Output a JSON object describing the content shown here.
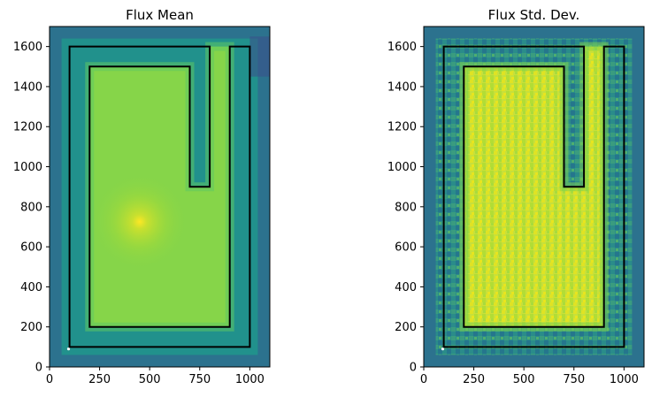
{
  "chart_data": [
    {
      "type": "heatmap",
      "title": "Flux Mean",
      "xlabel": "",
      "ylabel": "",
      "xlim": [
        0,
        1100
      ],
      "ylim": [
        0,
        1700
      ],
      "x_ticks": [
        0,
        250,
        500,
        750,
        1000
      ],
      "y_ticks": [
        0,
        200,
        400,
        600,
        800,
        1000,
        1200,
        1400,
        1600
      ],
      "colormap": "viridis",
      "peak": {
        "x": 450,
        "y": 725
      },
      "overlay": {
        "outer_outline": [
          [
            100,
            100
          ],
          [
            1000,
            100
          ],
          [
            1000,
            1600
          ],
          [
            900,
            1600
          ],
          [
            900,
            200
          ],
          [
            200,
            200
          ],
          [
            200,
            1500
          ],
          [
            700,
            1500
          ],
          [
            700,
            900
          ],
          [
            800,
            900
          ],
          [
            800,
            1600
          ],
          [
            100,
            1600
          ]
        ],
        "inner_region": [
          [
            200,
            200
          ],
          [
            900,
            200
          ],
          [
            900,
            1600
          ],
          [
            800,
            1600
          ],
          [
            800,
            900
          ],
          [
            700,
            900
          ],
          [
            700,
            1500
          ],
          [
            200,
            1500
          ]
        ]
      }
    },
    {
      "type": "heatmap",
      "title": "Flux Std. Dev.",
      "xlabel": "",
      "ylabel": "",
      "xlim": [
        0,
        1100
      ],
      "ylim": [
        0,
        1700
      ],
      "x_ticks": [
        0,
        250,
        500,
        750,
        1000
      ],
      "y_ticks": [
        0,
        200,
        400,
        600,
        800,
        1000,
        1200,
        1400,
        1600
      ],
      "colormap": "viridis",
      "overlay": {
        "outer_outline": [
          [
            100,
            100
          ],
          [
            1000,
            100
          ],
          [
            1000,
            1600
          ],
          [
            900,
            1600
          ],
          [
            900,
            200
          ],
          [
            200,
            200
          ],
          [
            200,
            1500
          ],
          [
            700,
            1500
          ],
          [
            700,
            900
          ],
          [
            800,
            900
          ],
          [
            800,
            1600
          ],
          [
            100,
            1600
          ]
        ],
        "inner_region": [
          [
            200,
            200
          ],
          [
            900,
            200
          ],
          [
            900,
            1600
          ],
          [
            800,
            1600
          ],
          [
            800,
            900
          ],
          [
            700,
            900
          ],
          [
            700,
            1500
          ],
          [
            200,
            1500
          ]
        ]
      }
    }
  ]
}
